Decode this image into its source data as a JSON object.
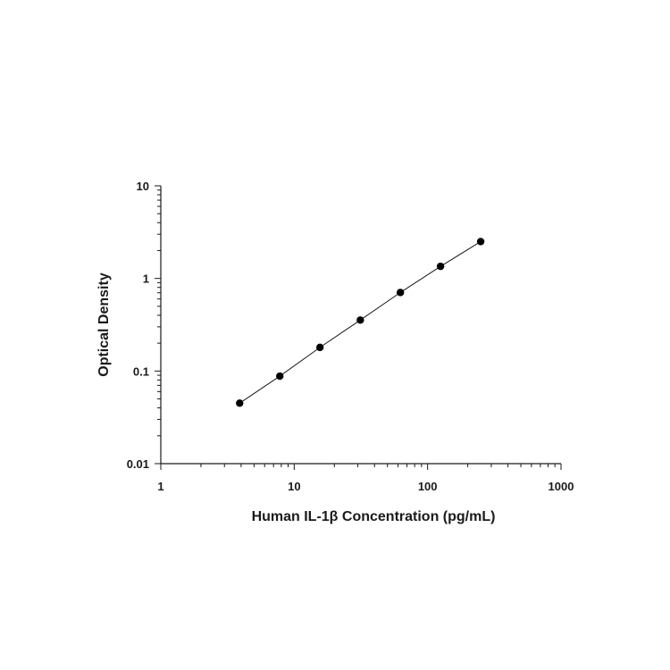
{
  "chart_data": {
    "type": "scatter",
    "title": "",
    "xlabel": "Human IL-1β Concentration (pg/mL)",
    "ylabel": "Optical Density",
    "x_scale": "log",
    "y_scale": "log",
    "xlim": [
      1,
      1000
    ],
    "ylim": [
      0.01,
      10
    ],
    "x_tick_labels": [
      "1",
      "10",
      "100",
      "1000"
    ],
    "y_tick_labels": [
      "10",
      "1",
      "0.1",
      "0.01"
    ],
    "grid": false,
    "legend": "none",
    "series": [
      {
        "x": [
          3.9,
          7.8,
          15.6,
          31.3,
          62.5,
          125,
          250
        ],
        "y": [
          0.045,
          0.088,
          0.18,
          0.355,
          0.705,
          1.35,
          2.5
        ]
      }
    ],
    "fit_line": true,
    "colors": {
      "marker": "#000000",
      "axis": "#1a1a1a"
    }
  }
}
